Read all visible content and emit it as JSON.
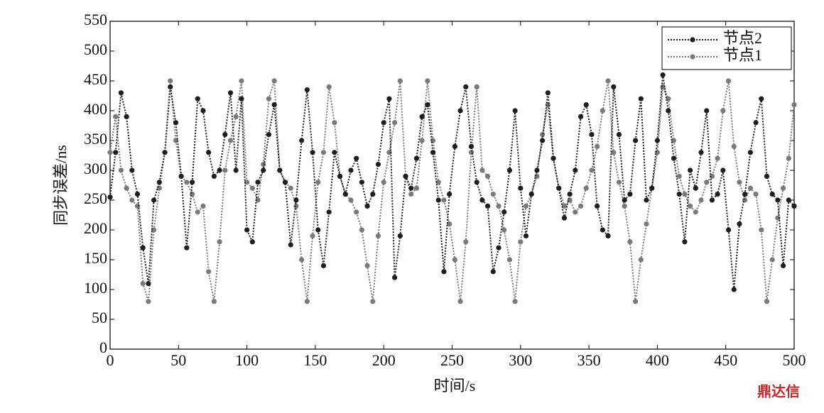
{
  "chart_data": {
    "type": "line",
    "xlabel": "时间/s",
    "ylabel": "同步误差/ns",
    "watermark": "鼎达信",
    "xlim": [
      0,
      500
    ],
    "ylim": [
      0,
      550
    ],
    "xticks": [
      0,
      50,
      100,
      150,
      200,
      250,
      300,
      350,
      400,
      450,
      500
    ],
    "yticks": [
      0,
      50,
      100,
      150,
      200,
      250,
      300,
      350,
      400,
      450,
      500,
      550
    ],
    "legend": "upper right",
    "grid": false,
    "x": [
      0,
      4,
      8,
      12,
      16,
      20,
      24,
      28,
      32,
      36,
      40,
      44,
      48,
      52,
      56,
      60,
      64,
      68,
      72,
      76,
      80,
      84,
      88,
      92,
      96,
      100,
      104,
      108,
      112,
      116,
      120,
      124,
      128,
      132,
      136,
      140,
      144,
      148,
      152,
      156,
      160,
      164,
      168,
      172,
      176,
      180,
      184,
      188,
      192,
      196,
      200,
      204,
      208,
      212,
      216,
      220,
      224,
      228,
      232,
      236,
      240,
      244,
      248,
      252,
      256,
      260,
      264,
      268,
      272,
      276,
      280,
      284,
      288,
      292,
      296,
      300,
      304,
      308,
      312,
      316,
      320,
      324,
      328,
      332,
      336,
      340,
      344,
      348,
      352,
      356,
      360,
      364,
      368,
      372,
      376,
      380,
      384,
      388,
      392,
      396,
      400,
      404,
      408,
      412,
      416,
      420,
      424,
      428,
      432,
      436,
      440,
      444,
      448,
      452,
      456,
      460,
      464,
      468,
      472,
      476,
      480,
      484,
      488,
      492,
      496,
      500
    ],
    "series": [
      {
        "name": "节点2",
        "color": "#1e1e1e",
        "values": [
          255,
          330,
          430,
          390,
          300,
          260,
          170,
          110,
          250,
          280,
          330,
          440,
          380,
          290,
          170,
          280,
          420,
          400,
          330,
          290,
          300,
          360,
          430,
          300,
          420,
          200,
          180,
          280,
          300,
          360,
          410,
          300,
          280,
          175,
          250,
          350,
          435,
          330,
          200,
          140,
          230,
          330,
          290,
          260,
          300,
          320,
          280,
          240,
          260,
          310,
          380,
          420,
          120,
          190,
          290,
          270,
          320,
          390,
          410,
          330,
          250,
          130,
          260,
          340,
          400,
          440,
          340,
          280,
          250,
          240,
          130,
          170,
          230,
          300,
          400,
          270,
          190,
          260,
          300,
          350,
          430,
          320,
          270,
          220,
          260,
          300,
          390,
          410,
          360,
          240,
          200,
          190,
          440,
          360,
          250,
          260,
          350,
          420,
          250,
          270,
          350,
          460,
          400,
          320,
          260,
          180,
          300,
          270,
          330,
          400,
          250,
          260,
          300,
          200,
          100,
          210,
          260,
          330,
          380,
          420,
          290,
          260,
          250,
          140,
          250,
          240
        ]
      },
      {
        "name": "节点1",
        "color": "#7a7a7a",
        "values": [
          330,
          390,
          300,
          270,
          250,
          240,
          110,
          80,
          200,
          270,
          330,
          450,
          350,
          290,
          280,
          260,
          230,
          240,
          130,
          80,
          180,
          300,
          350,
          390,
          450,
          280,
          270,
          250,
          310,
          420,
          450,
          300,
          280,
          270,
          240,
          150,
          80,
          190,
          280,
          330,
          440,
          380,
          290,
          260,
          250,
          230,
          200,
          140,
          80,
          190,
          280,
          330,
          380,
          450,
          290,
          260,
          270,
          350,
          450,
          350,
          280,
          250,
          210,
          150,
          80,
          180,
          330,
          440,
          300,
          290,
          260,
          240,
          200,
          150,
          80,
          180,
          240,
          260,
          290,
          360,
          410,
          320,
          270,
          240,
          250,
          230,
          240,
          270,
          300,
          340,
          400,
          450,
          330,
          280,
          240,
          180,
          80,
          150,
          210,
          270,
          330,
          440,
          420,
          350,
          290,
          260,
          240,
          230,
          250,
          280,
          290,
          320,
          400,
          450,
          340,
          280,
          250,
          270,
          260,
          200,
          80,
          150,
          220,
          270,
          320,
          410
        ]
      }
    ]
  }
}
